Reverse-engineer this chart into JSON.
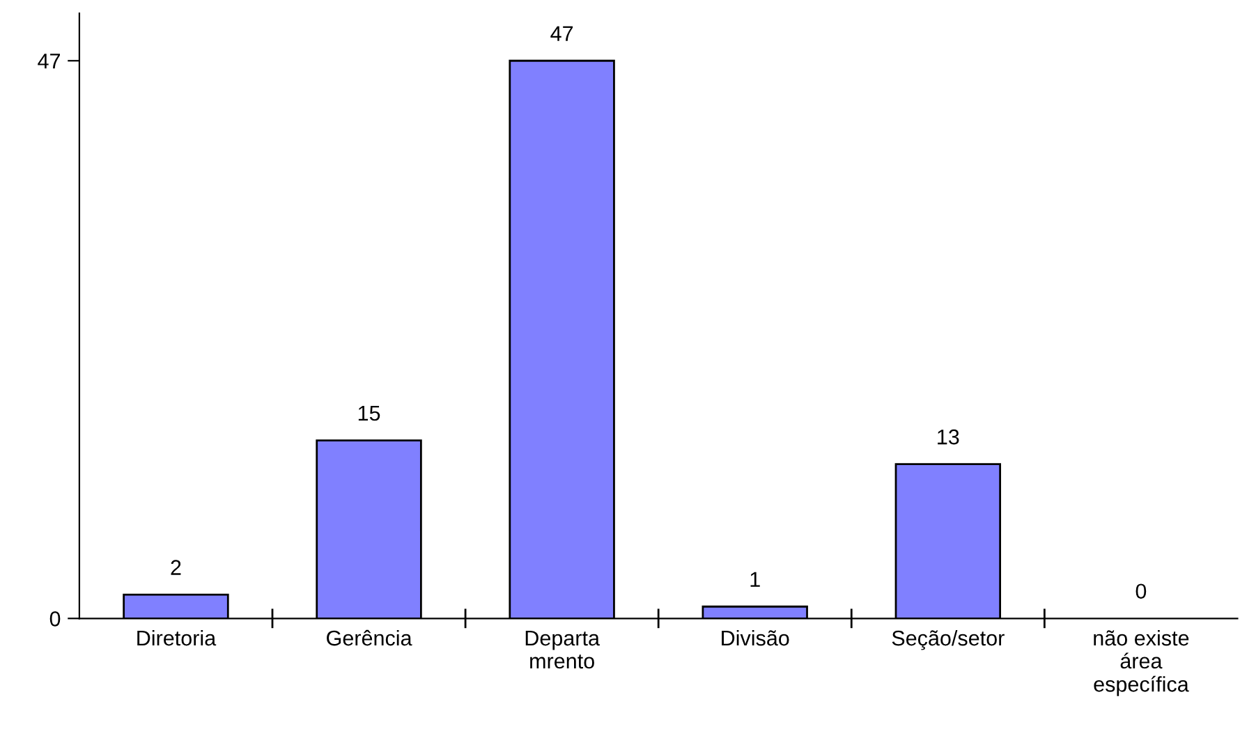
{
  "chart_data": {
    "type": "bar",
    "categories": [
      "Diretoria",
      "Gerência",
      "Departa\nmrento",
      "Divisão",
      "Seção/setor",
      "não existe\nárea\nespecífica"
    ],
    "values": [
      2,
      15,
      47,
      1,
      13,
      0
    ],
    "color": "#8080ff",
    "ylim": [
      0,
      51
    ],
    "yticks": [
      0,
      47
    ],
    "data_labels": true,
    "grid": false,
    "legend": false
  }
}
